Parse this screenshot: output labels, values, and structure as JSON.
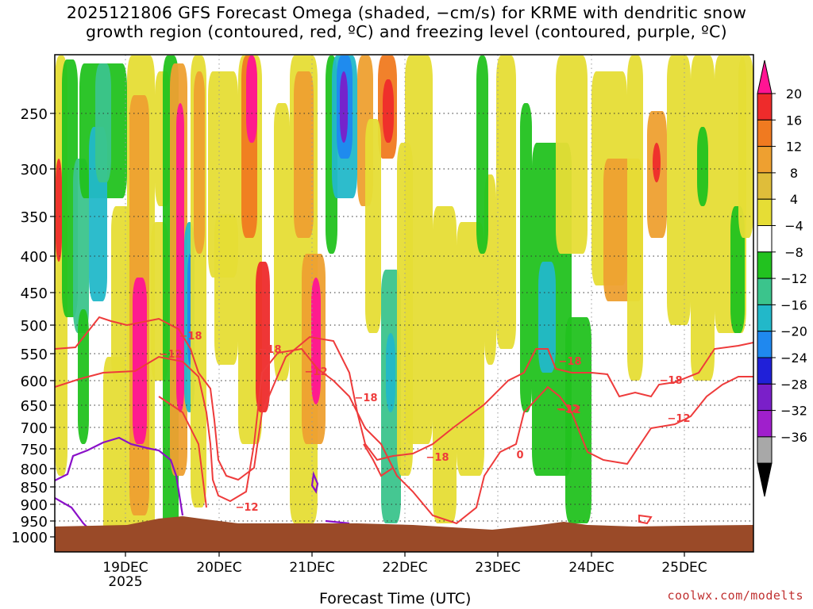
{
  "title": {
    "line1": "2025121806 GFS Forecast Omega (shaded, −cm/s) for KRME with dendritic snow",
    "line2": "growth region (contoured, red, ºC) and freezing level (contoured, purple, ºC)"
  },
  "credit": "coolwx.com/modelts",
  "chart_data": {
    "type": "heatmap",
    "xlabel": "Forecast Time (UTC)",
    "ylabel": "",
    "x_ticks": [
      {
        "label": "19DEC",
        "sub": "2025"
      },
      {
        "label": "20DEC",
        "sub": ""
      },
      {
        "label": "21DEC",
        "sub": ""
      },
      {
        "label": "22DEC",
        "sub": ""
      },
      {
        "label": "23DEC",
        "sub": ""
      },
      {
        "label": "24DEC",
        "sub": ""
      },
      {
        "label": "25DEC",
        "sub": ""
      }
    ],
    "y_ticks": [
      250,
      300,
      350,
      400,
      450,
      500,
      550,
      600,
      650,
      700,
      750,
      800,
      850,
      900,
      950,
      1000
    ],
    "colorbar": {
      "tick_labels": [
        "20",
        "16",
        "12",
        "8",
        "4",
        "−4",
        "−8",
        "−12",
        "−16",
        "−20",
        "−24",
        "−28",
        "−32",
        "−36"
      ],
      "colors": [
        "#ff1493",
        "#ee2b2b",
        "#f07a20",
        "#eea030",
        "#dfbd3a",
        "#e6dd35",
        "#ffffff",
        "#22c21f",
        "#3bc48c",
        "#22b8c9",
        "#1f88ef",
        "#2020d8",
        "#7a1fc9",
        "#a01fcc",
        "#a8a8a8",
        "#000000"
      ]
    },
    "contour_labels": [
      {
        "label": "−12",
        "color": "#ee3b3b"
      },
      {
        "label": "−18",
        "color": "#ee3b3b"
      },
      {
        "label": "−12",
        "color": "#ee3b3b"
      },
      {
        "label": "−18",
        "color": "#ee3b3b"
      },
      {
        "label": "−12",
        "color": "#ee3b3b"
      },
      {
        "label": "−18",
        "color": "#ee3b3b"
      },
      {
        "label": "−18",
        "color": "#ee3b3b"
      },
      {
        "label": "−12",
        "color": "#ee3b3b"
      },
      {
        "label": "−18",
        "color": "#ee3b3b"
      },
      {
        "label": "−12",
        "color": "#ee3b3b"
      },
      {
        "label": "−18",
        "color": "#ee3b3b"
      },
      {
        "label": "−12",
        "color": "#ee3b3b"
      },
      {
        "label": "0",
        "color": "#ee3b3b"
      }
    ],
    "terrain_color": "#9a4a28",
    "red_contour_color": "#ee3b3b",
    "purple_contour_color": "#8a10c8"
  }
}
